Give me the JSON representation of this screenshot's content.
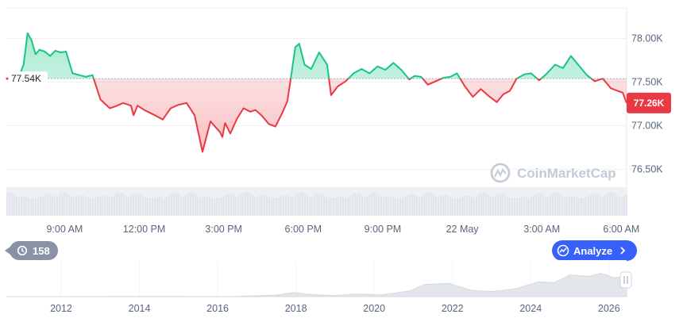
{
  "chart_data": [
    {
      "type": "line",
      "title": "",
      "xlabel": "",
      "ylabel": "",
      "reference_price": 77540,
      "reference_label": "77.54K",
      "current_price": 77260,
      "current_label": "77.26K",
      "ylim": [
        76350,
        78350
      ],
      "y_ticks": [
        {
          "value": 78000,
          "label": "78.00K"
        },
        {
          "value": 77500,
          "label": "77.50K"
        },
        {
          "value": 77000,
          "label": "77.00K"
        },
        {
          "value": 76500,
          "label": "76.50K"
        }
      ],
      "x_ticks": [
        "9:00 AM",
        "12:00 PM",
        "3:00 PM",
        "6:00 PM",
        "9:00 PM",
        "22 May",
        "3:00 AM",
        "6:00 AM"
      ],
      "x_tick_hours": [
        9,
        12,
        15,
        18,
        21,
        24,
        27,
        30
      ],
      "xlim_hours": [
        6.8,
        30.2
      ],
      "colors": {
        "above": "#16c784",
        "below": "#ea3943",
        "reference": "#a6b0c3"
      },
      "series": [
        {
          "hours": [
            6.8,
            7.2,
            7.45,
            7.6,
            7.75,
            7.9,
            8.05,
            8.25,
            8.45,
            8.65,
            8.85,
            9.05,
            9.3,
            9.55,
            9.8,
            10.05,
            10.35,
            10.7,
            10.9,
            11.2,
            11.5,
            11.6,
            11.75,
            12.0,
            12.4,
            12.7,
            13.0,
            13.3,
            13.6,
            13.9,
            14.2,
            14.5,
            14.7,
            14.85,
            14.95,
            15.05,
            15.25,
            15.5,
            15.75,
            16.0,
            16.2,
            16.45,
            16.7,
            16.95,
            17.2,
            17.4,
            17.55,
            17.7,
            17.85,
            18.05,
            18.3,
            18.6,
            18.9,
            19.05,
            19.3,
            19.6,
            19.9,
            20.2,
            20.5,
            20.8,
            21.1,
            21.4,
            21.7,
            22.0,
            22.2,
            22.45,
            22.7,
            23.0,
            23.3,
            23.55,
            23.8,
            24.1,
            24.4,
            24.7,
            25.0,
            25.3,
            25.55,
            25.8,
            26.05,
            26.35,
            26.6,
            26.9,
            27.2,
            27.5,
            27.8,
            28.1,
            28.4,
            28.7,
            29.0,
            29.3,
            29.6,
            29.85,
            30.05,
            30.2
          ],
          "prices": [
            77540,
            77500,
            77700,
            78060,
            77980,
            77820,
            77870,
            77850,
            77800,
            77860,
            77840,
            77850,
            77600,
            77580,
            77560,
            77580,
            77300,
            77200,
            77220,
            77260,
            77230,
            77120,
            77230,
            77180,
            77120,
            77070,
            77200,
            77240,
            77260,
            77120,
            76700,
            77050,
            76980,
            76930,
            76870,
            77030,
            76910,
            77080,
            77200,
            77160,
            77180,
            77110,
            77020,
            76990,
            77140,
            77280,
            77580,
            77900,
            77940,
            77700,
            77650,
            77840,
            77700,
            77350,
            77450,
            77510,
            77600,
            77650,
            77600,
            77680,
            77640,
            77720,
            77640,
            77530,
            77570,
            77560,
            77470,
            77510,
            77550,
            77560,
            77600,
            77450,
            77330,
            77420,
            77340,
            77270,
            77360,
            77400,
            77540,
            77590,
            77600,
            77520,
            77600,
            77700,
            77660,
            77800,
            77690,
            77580,
            77510,
            77540,
            77430,
            77400,
            77380,
            77260
          ]
        }
      ]
    },
    {
      "type": "area",
      "title": "",
      "x_ticks": [
        "2012",
        "2014",
        "2016",
        "2018",
        "2020",
        "2022",
        "2024",
        "2026"
      ],
      "x_tick_years": [
        2012,
        2014,
        2016,
        2018,
        2020,
        2022,
        2024,
        2026
      ],
      "xlim_years": [
        2010.6,
        2026.45
      ],
      "series": [
        {
          "years": [
            2010.6,
            2012.0,
            2013.0,
            2013.9,
            2014.5,
            2015.5,
            2016.5,
            2017.5,
            2017.95,
            2018.3,
            2019.0,
            2019.5,
            2020.2,
            2020.9,
            2021.3,
            2021.9,
            2022.5,
            2023.0,
            2023.6,
            2024.2,
            2024.6,
            2025.0,
            2025.5,
            2025.8,
            2026.1,
            2026.45
          ],
          "level": [
            0,
            0,
            0.002,
            0.01,
            0.006,
            0.003,
            0.007,
            0.06,
            0.16,
            0.09,
            0.04,
            0.1,
            0.07,
            0.22,
            0.48,
            0.52,
            0.24,
            0.2,
            0.3,
            0.58,
            0.55,
            0.85,
            0.8,
            0.92,
            0.75,
            0.78
          ]
        }
      ]
    }
  ],
  "watermark": "CoinMarketCap",
  "history_label": "158",
  "analyze_label": "Analyze",
  "icons": {
    "history": "history-clock-icon",
    "analyze": "analyze-chart-icon",
    "chevron": "chevron-right-icon",
    "handle": "range-handle-icon",
    "logo": "coinmarketcap-logo-icon"
  }
}
